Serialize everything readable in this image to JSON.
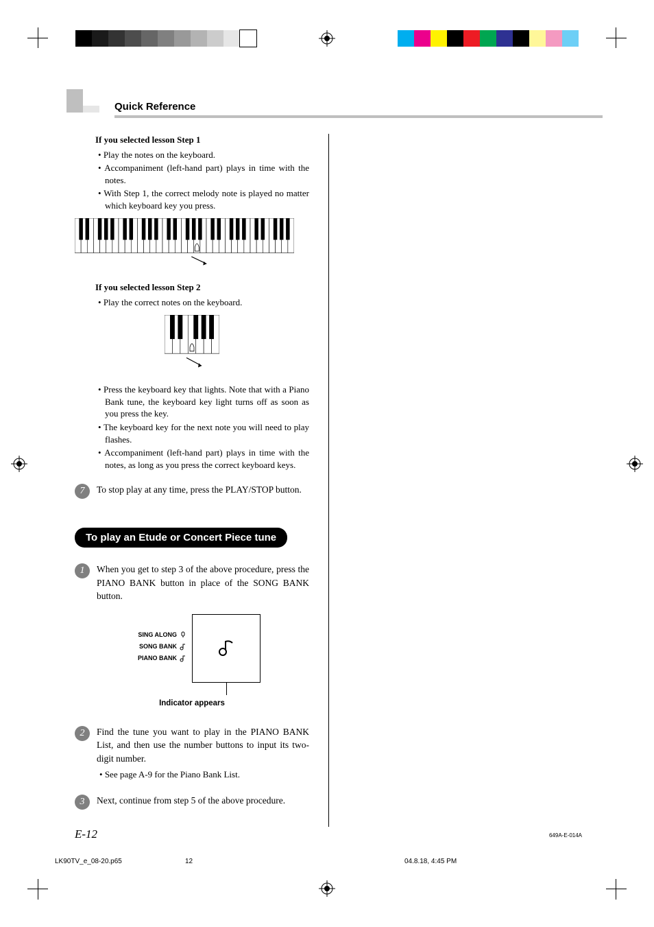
{
  "printer_marks": {
    "gray_bar_swatches": [
      "#000000",
      "#1a1a1a",
      "#333333",
      "#4d4d4d",
      "#666666",
      "#808080",
      "#999999",
      "#b3b3b3",
      "#cccccc",
      "#e6e6e6",
      "#ffffff"
    ],
    "color_bar_swatches": [
      "#00aeef",
      "#ec008c",
      "#fff200",
      "#000000",
      "#ed1c24",
      "#00a651",
      "#2e3192",
      "#000000",
      "#fff799",
      "#f49ac1",
      "#6dcff6"
    ]
  },
  "header": {
    "title": "Quick Reference"
  },
  "body": {
    "s1_heading": "If you selected lesson Step 1",
    "s1_b1": "Play the notes on the keyboard.",
    "s1_b2": "Accompaniment (left-hand part) plays in time with the notes.",
    "s1_b3": "With Step 1, the correct melody note is played no matter which keyboard key you press.",
    "s2_heading": "If you selected lesson Step 2",
    "s2_b1": "Play the correct notes on the keyboard.",
    "s2_b2": "Press the keyboard key that lights. Note that with a Piano  Bank tune, the keyboard key light turns off as soon as you press the key.",
    "s2_b3": "The keyboard key for the next note you will need to play flashes.",
    "s2_b4": "Accompaniment (left-hand part) plays in time with the notes, as long as you press the correct keyboard keys.",
    "step7_num": "7",
    "step7_txt": "To stop play at any time, press the PLAY/STOP button.",
    "pill": "To play an Etude or Concert Piece tune",
    "p1_num": "1",
    "p1_txt": "When you get to step 3 of the above procedure, press the PIANO BANK button in place of the SONG BANK button.",
    "disp_labels": {
      "l1": "SING ALONG",
      "l2": "SONG BANK",
      "l3": "PIANO BANK"
    },
    "disp_caption": "Indicator appears",
    "p2_num": "2",
    "p2_txt": "Find the tune you want to play in the PIANO BANK List, and then use the number buttons to input its two-digit number.",
    "p2_sub": "See page A-9 for the Piano Bank List.",
    "p3_num": "3",
    "p3_txt": "Next, continue from step 5 of the above procedure."
  },
  "keyboard": {
    "full_octaves": 5,
    "small_octaves": 1
  },
  "footer": {
    "page_num": "E-12",
    "doc_id": "649A-E-014A",
    "slug_file": "LK90TV_e_08-20.p65",
    "slug_page": "12",
    "slug_stamp": "04.8.18, 4:45 PM"
  },
  "colors": {
    "rule_gray": "#bfbfbf",
    "block_gray": "#bfbfbf",
    "badge_gray": "#808080"
  }
}
